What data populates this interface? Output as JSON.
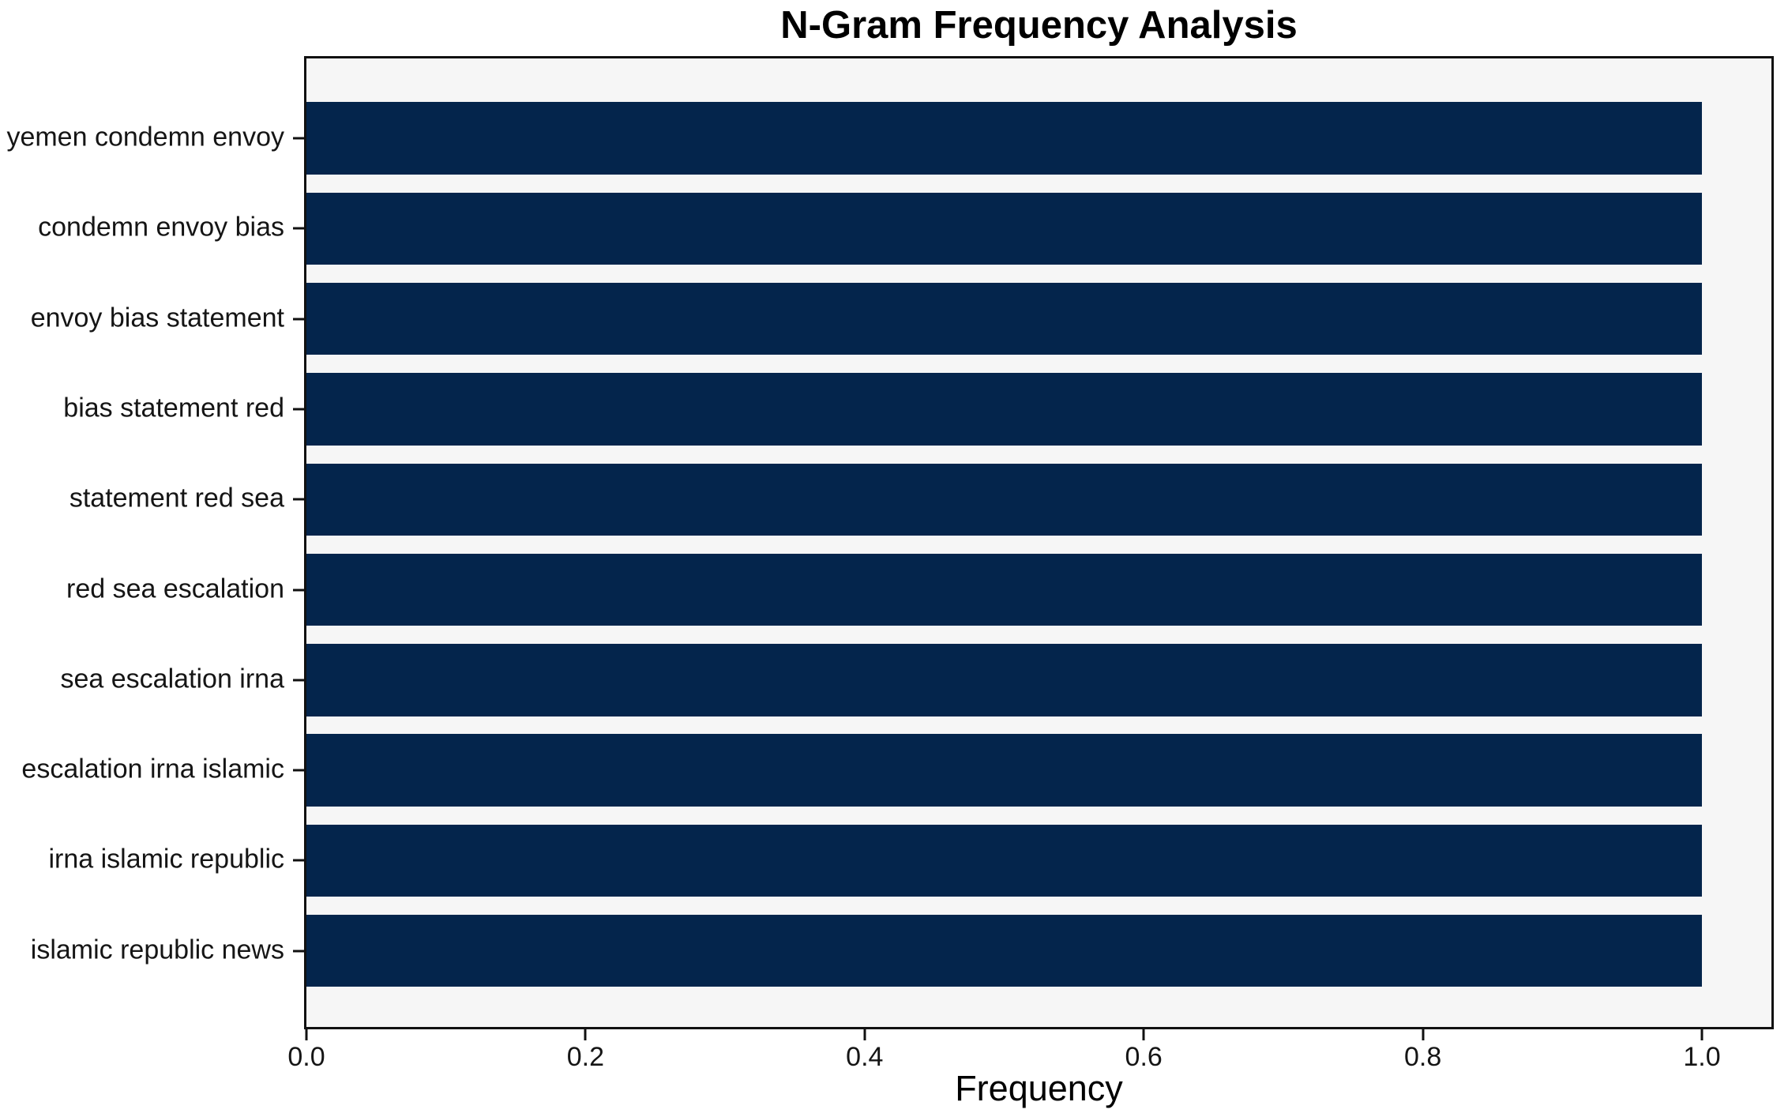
{
  "chart_data": {
    "type": "bar",
    "orientation": "horizontal",
    "title": "N-Gram Frequency Analysis",
    "xlabel": "Frequency",
    "ylabel": "",
    "categories": [
      "yemen condemn envoy",
      "condemn envoy bias",
      "envoy bias statement",
      "bias statement red",
      "statement red sea",
      "red sea escalation",
      "sea escalation irna",
      "escalation irna islamic",
      "irna islamic republic",
      "islamic republic news"
    ],
    "values": [
      1.0,
      1.0,
      1.0,
      1.0,
      1.0,
      1.0,
      1.0,
      1.0,
      1.0,
      1.0
    ],
    "x_tick_labels": [
      "0.0",
      "0.2",
      "0.4",
      "0.6",
      "0.8",
      "1.0"
    ],
    "x_tick_values": [
      0.0,
      0.2,
      0.4,
      0.6,
      0.8,
      1.0
    ],
    "xlim": [
      0,
      1.051
    ],
    "grid": false,
    "legend": null,
    "bar_color": "#04254c",
    "plot_background": "#f6f6f6",
    "figure_background": "#ffffff",
    "spine_color": "#111111",
    "text_color": "#151515"
  }
}
